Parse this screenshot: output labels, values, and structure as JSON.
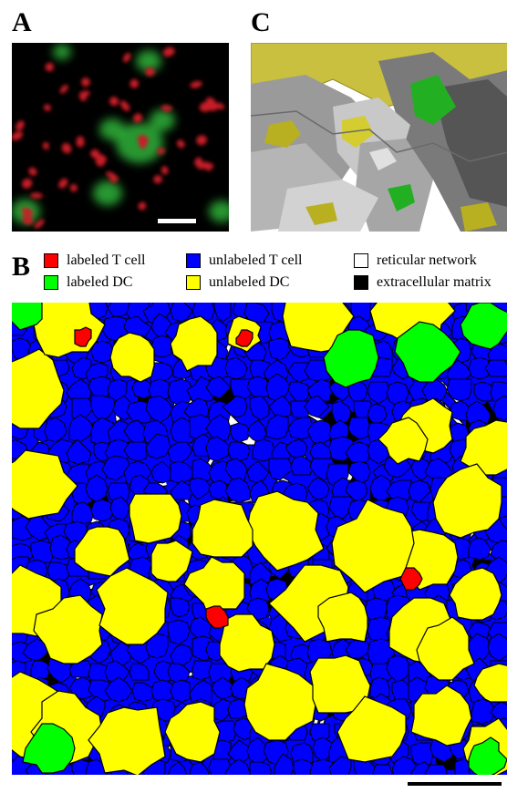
{
  "panels": {
    "a": {
      "letter": "A"
    },
    "b": {
      "letter": "B"
    },
    "c": {
      "letter": "C"
    }
  },
  "legend": [
    {
      "label": "labeled T cell",
      "color": "#ff0000"
    },
    {
      "label": "unlabeled T cell",
      "color": "#0000ff"
    },
    {
      "label": "reticular network",
      "color": "#ffffff"
    },
    {
      "label": "labeled DC",
      "color": "#00ff00"
    },
    {
      "label": "unlabeled DC",
      "color": "#ffff00"
    },
    {
      "label": "extracellular matrix",
      "color": "#000000"
    }
  ],
  "colors": {
    "labeled_t_cell": "#ff0000",
    "unlabeled_t_cell": "#0000ff",
    "reticular_network": "#ffffff",
    "labeled_dc": "#00ff00",
    "unlabeled_dc": "#ffff00",
    "extracellular_matrix": "#000000",
    "microscopy_red": "#c81e28",
    "microscopy_green": "#2fb23a",
    "render_gray": "#8c8c8c",
    "render_yellow": "#b8b020",
    "render_green": "#22b022"
  }
}
